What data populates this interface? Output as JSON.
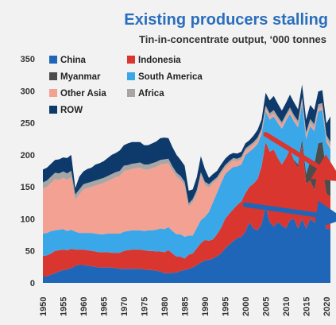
{
  "chart_data": {
    "type": "area",
    "stacked": true,
    "title": "Existing producers stalling",
    "subtitle": "Tin-in-concentrate output, ‘000 tonnes",
    "xlabel": "",
    "ylabel": "",
    "xlim": [
      1950,
      2021
    ],
    "ylim": [
      0,
      350
    ],
    "yticks": [
      0,
      50,
      100,
      150,
      200,
      250,
      300,
      350
    ],
    "xticks": [
      1950,
      1955,
      1960,
      1965,
      1970,
      1975,
      1980,
      1985,
      1990,
      1995,
      2000,
      2005,
      2010,
      2015,
      2020
    ],
    "grid": false,
    "legend_position": "top-left",
    "x": [
      1950,
      1951,
      1952,
      1953,
      1954,
      1955,
      1956,
      1957,
      1958,
      1959,
      1960,
      1961,
      1962,
      1963,
      1964,
      1965,
      1966,
      1967,
      1968,
      1969,
      1970,
      1971,
      1972,
      1973,
      1974,
      1975,
      1976,
      1977,
      1978,
      1979,
      1980,
      1981,
      1982,
      1983,
      1984,
      1985,
      1986,
      1987,
      1988,
      1989,
      1990,
      1991,
      1992,
      1993,
      1994,
      1995,
      1996,
      1997,
      1998,
      1999,
      2000,
      2001,
      2002,
      2003,
      2004,
      2005,
      2006,
      2007,
      2008,
      2009,
      2010,
      2011,
      2012,
      2013,
      2014,
      2015,
      2016,
      2017,
      2018,
      2019,
      2020,
      2021
    ],
    "series": [
      {
        "name": "China",
        "color": "#1f66b8",
        "values": [
          10,
          10,
          13,
          15,
          18,
          20,
          21,
          23,
          27,
          28,
          28,
          27,
          26,
          25,
          24,
          24,
          24,
          24,
          23,
          22,
          22,
          22,
          22,
          22,
          22,
          21,
          20,
          20,
          19,
          18,
          15,
          15,
          16,
          16,
          19,
          20,
          22,
          24,
          28,
          32,
          35,
          36,
          38,
          42,
          46,
          54,
          60,
          65,
          70,
          72,
          80,
          95,
          85,
          82,
          92,
          120,
          95,
          88,
          95,
          90,
          85,
          98,
          100,
          85,
          100,
          85,
          100,
          95,
          88,
          100,
          85,
          84
        ]
      },
      {
        "name": "Indonesia",
        "color": "#d9362f",
        "values": [
          32,
          33,
          33,
          35,
          33,
          32,
          30,
          30,
          25,
          24,
          24,
          24,
          24,
          24,
          24,
          24,
          24,
          23,
          24,
          25,
          28,
          29,
          30,
          30,
          30,
          30,
          30,
          30,
          30,
          31,
          33,
          36,
          30,
          25,
          22,
          18,
          22,
          22,
          26,
          30,
          32,
          30,
          30,
          34,
          40,
          46,
          48,
          50,
          52,
          55,
          60,
          55,
          70,
          80,
          90,
          100,
          110,
          120,
          100,
          95,
          110,
          110,
          90,
          95,
          115,
          70,
          60,
          50,
          85,
          80,
          55,
          50
        ]
      },
      {
        "name": "Myanmar",
        "color": "#4c4c4c",
        "values": [
          0,
          0,
          0,
          0,
          0,
          0,
          0,
          0,
          0,
          0,
          0,
          0,
          0,
          0,
          0,
          0,
          0,
          0,
          0,
          0,
          0,
          0,
          0,
          0,
          0,
          0,
          0,
          0,
          0,
          0,
          0,
          0,
          0,
          0,
          0,
          0,
          0,
          0,
          0,
          0,
          0,
          0,
          0,
          0,
          0,
          0,
          0,
          0,
          0,
          0,
          0,
          0,
          0,
          0,
          0,
          0,
          0,
          0,
          0,
          0,
          0,
          0,
          2,
          5,
          10,
          15,
          30,
          40,
          45,
          40,
          35,
          30
        ]
      },
      {
        "name": "South America",
        "color": "#3aa8e8",
        "values": [
          35,
          35,
          35,
          32,
          32,
          32,
          30,
          30,
          28,
          26,
          26,
          27,
          28,
          28,
          28,
          28,
          29,
          30,
          30,
          30,
          30,
          30,
          30,
          30,
          30,
          30,
          32,
          32,
          34,
          36,
          36,
          36,
          35,
          35,
          35,
          34,
          30,
          28,
          32,
          36,
          36,
          45,
          58,
          65,
          70,
          70,
          68,
          66,
          60,
          58,
          60,
          55,
          55,
          55,
          50,
          48,
          50,
          52,
          55,
          56,
          58,
          56,
          60,
          58,
          55,
          55,
          55,
          52,
          50,
          50,
          45,
          45
        ]
      },
      {
        "name": "Other Asia",
        "color": "#f2a193",
        "values": [
          70,
          72,
          75,
          80,
          78,
          80,
          80,
          82,
          50,
          60,
          68,
          70,
          72,
          75,
          78,
          80,
          82,
          85,
          88,
          90,
          95,
          95,
          96,
          97,
          98,
          96,
          95,
          97,
          98,
          100,
          102,
          100,
          95,
          90,
          85,
          80,
          45,
          52,
          54,
          70,
          50,
          38,
          30,
          20,
          15,
          10,
          10,
          10,
          8,
          8,
          6,
          6,
          6,
          6,
          5,
          5,
          5,
          5,
          5,
          5,
          5,
          5,
          5,
          5,
          5,
          5,
          5,
          5,
          5,
          5,
          5,
          5
        ]
      },
      {
        "name": "Africa",
        "color": "#a6a6a6",
        "values": [
          10,
          10,
          10,
          10,
          10,
          10,
          10,
          10,
          8,
          8,
          8,
          8,
          8,
          8,
          8,
          8,
          8,
          8,
          8,
          8,
          8,
          8,
          8,
          8,
          8,
          8,
          8,
          8,
          8,
          7,
          7,
          7,
          6,
          6,
          6,
          6,
          5,
          5,
          5,
          5,
          5,
          5,
          4,
          4,
          4,
          4,
          4,
          4,
          4,
          4,
          4,
          4,
          4,
          4,
          4,
          4,
          5,
          5,
          5,
          5,
          5,
          5,
          5,
          5,
          5,
          5,
          6,
          6,
          6,
          6,
          6,
          6
        ]
      },
      {
        "name": "ROW",
        "color": "#0e3a6b",
        "values": [
          20,
          20,
          20,
          20,
          22,
          22,
          24,
          25,
          10,
          20,
          20,
          22,
          22,
          25,
          25,
          26,
          28,
          30,
          30,
          32,
          32,
          34,
          34,
          33,
          32,
          30,
          30,
          31,
          32,
          34,
          34,
          32,
          30,
          28,
          25,
          25,
          20,
          15,
          20,
          25,
          20,
          10,
          10,
          10,
          10,
          10,
          10,
          8,
          8,
          8,
          8,
          8,
          10,
          12,
          14,
          20,
          20,
          22,
          20,
          18,
          18,
          20,
          20,
          18,
          20,
          20,
          22,
          22,
          20,
          20,
          18,
          40
        ]
      }
    ],
    "annotations": [
      {
        "type": "arrow",
        "color": "#d9362f",
        "from": [
          2005,
          232
        ],
        "to": [
          2021,
          170
        ]
      },
      {
        "type": "arrow",
        "color": "#1f66b8",
        "from": [
          2000,
          122
        ],
        "to": [
          2021,
          103
        ]
      }
    ]
  }
}
